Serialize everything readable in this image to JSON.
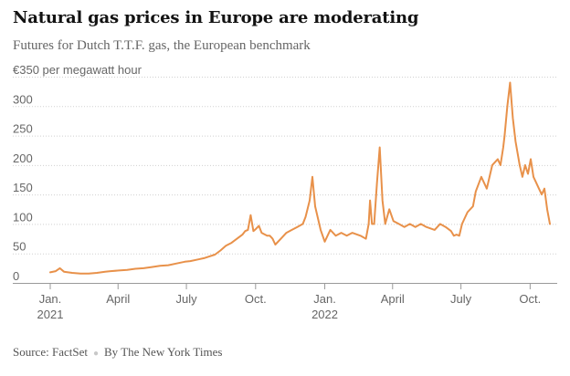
{
  "chart_data": {
    "type": "line",
    "title": "Natural gas prices in Europe are moderating",
    "subtitle": "Futures for Dutch T.T.F. gas, the European benchmark",
    "ylabel": "€350 per megawatt hour",
    "y_top_label": "€350 per megawatt hour",
    "yticks": [
      {
        "value": 0,
        "label": "0"
      },
      {
        "value": 50,
        "label": "50"
      },
      {
        "value": 100,
        "label": "100"
      },
      {
        "value": 150,
        "label": "150"
      },
      {
        "value": 200,
        "label": "200"
      },
      {
        "value": 250,
        "label": "250"
      },
      {
        "value": 300,
        "label": "300"
      }
    ],
    "ylim": [
      0,
      350
    ],
    "xlim": [
      2021.0,
      2022.83
    ],
    "xticks": [
      {
        "value": 2021.0,
        "label": "Jan.",
        "sublabel": "2021"
      },
      {
        "value": 2021.247,
        "label": "April",
        "sublabel": ""
      },
      {
        "value": 2021.496,
        "label": "July",
        "sublabel": ""
      },
      {
        "value": 2021.748,
        "label": "Oct.",
        "sublabel": ""
      },
      {
        "value": 2022.0,
        "label": "Jan.",
        "sublabel": "2022"
      },
      {
        "value": 2022.247,
        "label": "April",
        "sublabel": ""
      },
      {
        "value": 2022.496,
        "label": "July",
        "sublabel": ""
      },
      {
        "value": 2022.748,
        "label": "Oct.",
        "sublabel": ""
      }
    ],
    "grid": true,
    "series": [
      {
        "name": "Dutch T.T.F. gas futures",
        "color": "#e8914a",
        "x": [
          2021.0,
          2021.02,
          2021.035,
          2021.05,
          2021.08,
          2021.11,
          2021.14,
          2021.17,
          2021.2,
          2021.22,
          2021.25,
          2021.28,
          2021.31,
          2021.34,
          2021.37,
          2021.4,
          2021.43,
          2021.46,
          2021.49,
          2021.51,
          2021.54,
          2021.56,
          2021.58,
          2021.6,
          2021.62,
          2021.64,
          2021.66,
          2021.68,
          2021.7,
          2021.71,
          2021.72,
          2021.73,
          2021.74,
          2021.75,
          2021.76,
          2021.77,
          2021.79,
          2021.8,
          2021.81,
          2021.82,
          2021.84,
          2021.86,
          2021.88,
          2021.9,
          2021.92,
          2021.93,
          2021.945,
          2021.955,
          2021.965,
          2021.975,
          2021.985,
          2022.0,
          2022.02,
          2022.04,
          2022.06,
          2022.08,
          2022.1,
          2022.13,
          2022.15,
          2022.16,
          2022.165,
          2022.172,
          2022.18,
          2022.19,
          2022.2,
          2022.21,
          2022.22,
          2022.235,
          2022.25,
          2022.27,
          2022.29,
          2022.31,
          2022.33,
          2022.35,
          2022.37,
          2022.4,
          2022.42,
          2022.44,
          2022.46,
          2022.47,
          2022.48,
          2022.49,
          2022.5,
          2022.52,
          2022.54,
          2022.55,
          2022.57,
          2022.59,
          2022.61,
          2022.63,
          2022.64,
          2022.65,
          2022.655,
          2022.665,
          2022.675,
          2022.685,
          2022.695,
          2022.71,
          2022.72,
          2022.73,
          2022.74,
          2022.75,
          2022.76,
          2022.77,
          2022.78,
          2022.79,
          2022.8,
          2022.81,
          2022.82
        ],
        "values": [
          18,
          20,
          25,
          19,
          17,
          16,
          16,
          17,
          19,
          20,
          21,
          22,
          24,
          25,
          27,
          29,
          30,
          33,
          36,
          37,
          40,
          42,
          45,
          48,
          55,
          63,
          68,
          75,
          82,
          88,
          90,
          115,
          88,
          92,
          97,
          85,
          80,
          80,
          75,
          65,
          75,
          85,
          90,
          95,
          100,
          112,
          140,
          180,
          130,
          110,
          90,
          70,
          90,
          80,
          85,
          80,
          85,
          80,
          75,
          100,
          140,
          100,
          100,
          170,
          230,
          140,
          100,
          125,
          105,
          100,
          95,
          100,
          95,
          100,
          95,
          90,
          100,
          95,
          88,
          80,
          82,
          80,
          100,
          120,
          130,
          155,
          180,
          160,
          200,
          210,
          200,
          230,
          250,
          300,
          340,
          280,
          240,
          200,
          180,
          200,
          185,
          210,
          180,
          170,
          160,
          150,
          160,
          125,
          100
        ]
      }
    ]
  },
  "footer": {
    "source": "Source: FactSet",
    "credit": "By The New York Times"
  }
}
